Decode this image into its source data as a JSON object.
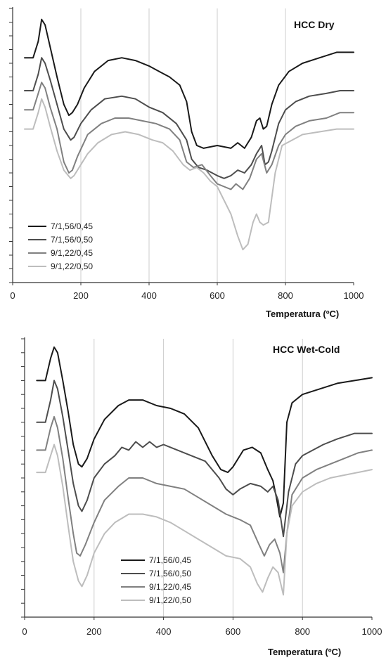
{
  "chart_data": [
    {
      "type": "line",
      "title": "HCC Dry",
      "xlabel": "Temperatura (ºC)",
      "ylabel": "",
      "xlim": [
        0,
        1000
      ],
      "xticks": [
        "0",
        "200",
        "400",
        "600",
        "800",
        "1000"
      ],
      "grid_x": [
        200,
        400,
        600,
        800
      ],
      "legend_position": "bottom-left",
      "colors": [
        "#1a1a1a",
        "#4d4d4d",
        "#808080",
        "#bdbdbd"
      ],
      "series": [
        {
          "name": "7/1,56/0,45",
          "x": [
            35,
            60,
            75,
            85,
            95,
            110,
            130,
            150,
            165,
            175,
            190,
            210,
            240,
            280,
            320,
            360,
            400,
            430,
            460,
            490,
            510,
            525,
            540,
            560,
            600,
            640,
            660,
            680,
            700,
            715,
            725,
            735,
            745,
            760,
            780,
            810,
            850,
            900,
            950,
            1000
          ],
          "y": [
            82,
            82,
            88,
            96,
            94,
            86,
            75,
            65,
            61,
            62,
            65,
            71,
            77,
            81,
            82,
            81,
            79,
            77,
            75,
            72,
            66,
            55,
            50,
            49,
            50,
            49,
            51,
            49,
            53,
            59,
            60,
            56,
            57,
            65,
            72,
            77,
            80,
            82,
            84,
            84
          ]
        },
        {
          "name": "7/1,56/0,50",
          "x": [
            35,
            60,
            75,
            85,
            95,
            110,
            130,
            150,
            170,
            180,
            200,
            230,
            270,
            320,
            360,
            400,
            440,
            480,
            510,
            525,
            545,
            570,
            600,
            620,
            640,
            660,
            680,
            700,
            715,
            730,
            740,
            750,
            760,
            780,
            800,
            830,
            870,
            920,
            960,
            1000
          ],
          "y": [
            70,
            70,
            76,
            82,
            80,
            74,
            65,
            56,
            52,
            53,
            58,
            63,
            67,
            68,
            67,
            64,
            62,
            58,
            52,
            45,
            42,
            41,
            39,
            38,
            39,
            41,
            40,
            43,
            47,
            50,
            43,
            44,
            48,
            58,
            63,
            66,
            68,
            69,
            70,
            70
          ]
        },
        {
          "name": "9/1,22/0,45",
          "x": [
            35,
            60,
            75,
            85,
            95,
            110,
            130,
            150,
            165,
            175,
            190,
            220,
            260,
            300,
            340,
            380,
            420,
            460,
            490,
            510,
            530,
            555,
            580,
            600,
            620,
            640,
            655,
            675,
            695,
            715,
            730,
            745,
            760,
            780,
            800,
            830,
            870,
            920,
            960,
            1000
          ],
          "y": [
            63,
            63,
            69,
            73,
            71,
            64,
            56,
            44,
            40,
            41,
            46,
            54,
            58,
            60,
            60,
            59,
            58,
            56,
            52,
            44,
            42,
            43,
            39,
            36,
            35,
            34,
            36,
            34,
            38,
            45,
            47,
            40,
            43,
            50,
            54,
            57,
            59,
            60,
            62,
            62
          ]
        },
        {
          "name": "9/1,22/0,50",
          "x": [
            35,
            60,
            75,
            85,
            95,
            110,
            130,
            150,
            170,
            180,
            200,
            220,
            250,
            290,
            330,
            370,
            410,
            440,
            470,
            500,
            520,
            540,
            560,
            580,
            600,
            620,
            640,
            660,
            675,
            690,
            705,
            715,
            725,
            735,
            750,
            770,
            790,
            820,
            850,
            900,
            950,
            1000
          ],
          "y": [
            56,
            56,
            62,
            67,
            64,
            57,
            48,
            41,
            38,
            39,
            43,
            47,
            51,
            54,
            55,
            54,
            52,
            51,
            48,
            43,
            41,
            42,
            40,
            37,
            35,
            30,
            25,
            17,
            12,
            14,
            22,
            25,
            22,
            21,
            22,
            40,
            50,
            52,
            54,
            55,
            56,
            56
          ]
        }
      ]
    },
    {
      "type": "line",
      "title": "HCC Wet-Cold",
      "xlabel": "Temperatura (ºC)",
      "ylabel": "",
      "xlim": [
        0,
        1000
      ],
      "xticks": [
        "0",
        "200",
        "400",
        "600",
        "800",
        "1000"
      ],
      "grid_x": [
        200,
        400,
        600,
        800
      ],
      "legend_position": "bottom-center",
      "colors": [
        "#1a1a1a",
        "#4d4d4d",
        "#808080",
        "#bdbdbd"
      ],
      "series": [
        {
          "name": "7/1,56/0,45",
          "x": [
            35,
            60,
            75,
            85,
            95,
            110,
            125,
            140,
            155,
            165,
            180,
            200,
            230,
            270,
            300,
            340,
            380,
            420,
            460,
            500,
            540,
            565,
            585,
            600,
            630,
            655,
            680,
            700,
            715,
            725,
            735,
            745,
            755,
            770,
            800,
            850,
            900,
            950,
            1000
          ],
          "y": [
            85,
            85,
            93,
            97,
            95,
            85,
            74,
            62,
            55,
            54,
            57,
            64,
            71,
            76,
            78,
            78,
            76,
            75,
            73,
            68,
            58,
            53,
            52,
            54,
            60,
            61,
            59,
            53,
            49,
            43,
            36,
            41,
            70,
            77,
            80,
            82,
            84,
            85,
            86
          ]
        },
        {
          "name": "7/1,56/0,50",
          "x": [
            35,
            60,
            75,
            85,
            95,
            110,
            125,
            140,
            155,
            165,
            180,
            200,
            230,
            260,
            280,
            300,
            320,
            340,
            360,
            380,
            400,
            440,
            480,
            520,
            560,
            580,
            600,
            620,
            650,
            680,
            700,
            715,
            730,
            745,
            760,
            780,
            800,
            830,
            860,
            900,
            950,
            1000
          ],
          "y": [
            70,
            70,
            78,
            85,
            82,
            72,
            60,
            48,
            40,
            38,
            42,
            50,
            55,
            58,
            61,
            60,
            63,
            61,
            63,
            61,
            62,
            60,
            58,
            56,
            50,
            46,
            44,
            46,
            48,
            47,
            45,
            47,
            42,
            29,
            45,
            55,
            58,
            60,
            62,
            64,
            66,
            66
          ]
        },
        {
          "name": "9/1,22/0,45",
          "x": [
            35,
            60,
            75,
            85,
            95,
            110,
            125,
            140,
            150,
            160,
            175,
            200,
            230,
            270,
            300,
            340,
            380,
            420,
            460,
            500,
            540,
            580,
            620,
            650,
            675,
            690,
            705,
            720,
            735,
            745,
            755,
            770,
            800,
            840,
            880,
            920,
            960,
            1000
          ],
          "y": [
            60,
            60,
            68,
            72,
            68,
            57,
            43,
            30,
            23,
            22,
            26,
            34,
            42,
            47,
            50,
            50,
            48,
            47,
            46,
            43,
            40,
            37,
            35,
            33,
            26,
            22,
            26,
            28,
            23,
            16,
            30,
            44,
            50,
            53,
            55,
            57,
            59,
            60
          ]
        },
        {
          "name": "9/1,22/0,50",
          "x": [
            35,
            60,
            75,
            85,
            95,
            110,
            125,
            140,
            155,
            165,
            180,
            200,
            230,
            260,
            300,
            340,
            380,
            420,
            460,
            500,
            540,
            580,
            620,
            650,
            670,
            685,
            700,
            715,
            730,
            745,
            755,
            770,
            800,
            840,
            880,
            920,
            960,
            1000
          ],
          "y": [
            52,
            52,
            58,
            62,
            58,
            47,
            33,
            20,
            13,
            11,
            15,
            23,
            30,
            34,
            37,
            37,
            36,
            34,
            31,
            28,
            25,
            22,
            21,
            18,
            12,
            9,
            14,
            18,
            16,
            8,
            30,
            40,
            45,
            48,
            50,
            51,
            52,
            53
          ]
        }
      ]
    }
  ]
}
